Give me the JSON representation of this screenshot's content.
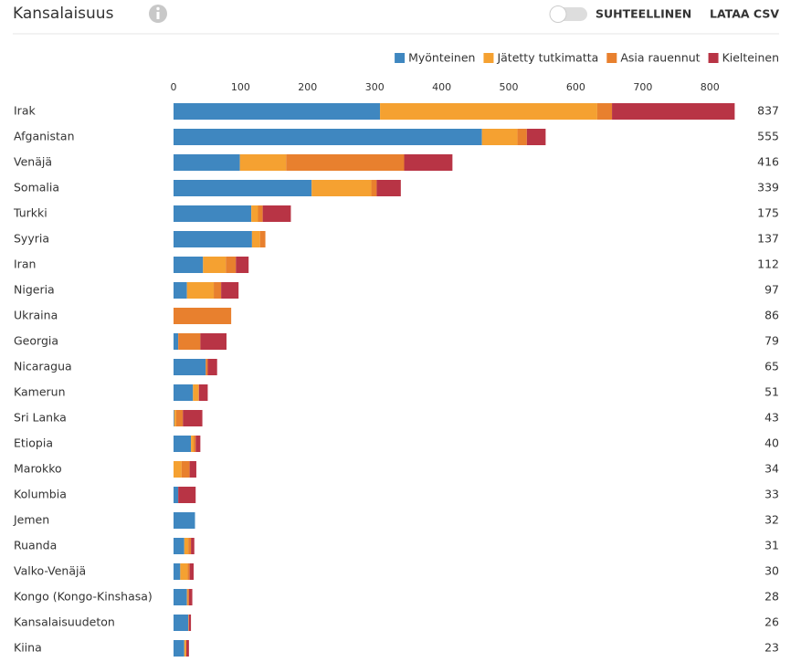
{
  "header": {
    "title": "Kansalaisuus",
    "toggle_label": "SUHTEELLINEN",
    "download": "LATAA CSV"
  },
  "chart_data": {
    "type": "stacked-bar-horizontal",
    "categories": [
      "Irak",
      "Afganistan",
      "Venäjä",
      "Somalia",
      "Turkki",
      "Syyria",
      "Iran",
      "Nigeria",
      "Ukraina",
      "Georgia",
      "Nicaragua",
      "Kamerun",
      "Sri Lanka",
      "Etiopia",
      "Marokko",
      "Kolumbia",
      "Jemen",
      "Ruanda",
      "Valko-Venäjä",
      "Kongo (Kongo-Kinshasa)",
      "Kansalaisuudeton",
      "Kiina"
    ],
    "series": [
      {
        "name": "Myönteinen",
        "color": "#3f87c0",
        "values": [
          308,
          460,
          99,
          206,
          116,
          117,
          44,
          20,
          0,
          7,
          48,
          29,
          1,
          26,
          0,
          7,
          32,
          16,
          10,
          20,
          22,
          16
        ]
      },
      {
        "name": "Jätetty tutkimatta",
        "color": "#f5a131",
        "values": [
          324,
          53,
          69,
          89,
          10,
          12,
          34,
          40,
          0,
          0,
          0,
          8,
          3,
          4,
          12,
          0,
          0,
          6,
          11,
          1,
          0,
          3
        ]
      },
      {
        "name": "Asia rauennut",
        "color": "#e8802e",
        "values": [
          22,
          14,
          176,
          8,
          7,
          8,
          15,
          11,
          86,
          33,
          3,
          1,
          10,
          3,
          12,
          0,
          0,
          4,
          3,
          2,
          1,
          0
        ]
      },
      {
        "name": "Kielteinen",
        "color": "#b83445",
        "values": [
          183,
          28,
          72,
          36,
          42,
          0,
          19,
          26,
          0,
          39,
          14,
          13,
          29,
          7,
          10,
          26,
          0,
          5,
          6,
          5,
          3,
          4
        ]
      }
    ],
    "totals": [
      837,
      555,
      416,
      339,
      175,
      137,
      112,
      97,
      86,
      79,
      65,
      51,
      43,
      40,
      34,
      33,
      32,
      31,
      30,
      28,
      26,
      23
    ],
    "xlim": [
      0,
      840
    ],
    "xticks": [
      0,
      100,
      200,
      300,
      400,
      500,
      600,
      700,
      800
    ],
    "legend": "top-right"
  }
}
